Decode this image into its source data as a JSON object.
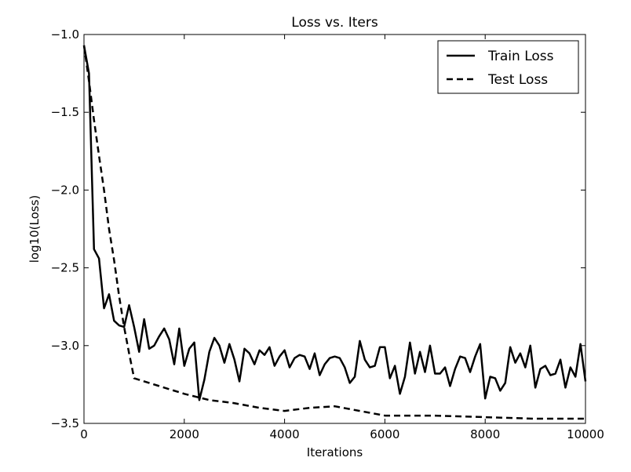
{
  "chart_data": {
    "type": "line",
    "title": "Loss vs. Iters",
    "xlabel": "Iterations",
    "ylabel": "log10(Loss)",
    "xlim": [
      0,
      10000
    ],
    "ylim": [
      -3.5,
      -1.0
    ],
    "xticks": [
      0,
      2000,
      4000,
      6000,
      8000,
      10000
    ],
    "xtick_labels": [
      "0",
      "2000",
      "4000",
      "6000",
      "8000",
      "10000"
    ],
    "yticks": [
      -1.0,
      -1.5,
      -2.0,
      -2.5,
      -3.0,
      -3.5
    ],
    "ytick_labels": [
      "−1.0",
      "−1.5",
      "−2.0",
      "−2.5",
      "−3.0",
      "−3.5"
    ],
    "grid": false,
    "legend_position": "top-right",
    "series": [
      {
        "name": "Train Loss",
        "style": "solid",
        "color": "#000000",
        "x": [
          0,
          100,
          200,
          300,
          400,
          500,
          600,
          700,
          800,
          900,
          1000,
          1100,
          1200,
          1300,
          1400,
          1500,
          1600,
          1700,
          1800,
          1900,
          2000,
          2100,
          2200,
          2300,
          2400,
          2500,
          2600,
          2700,
          2800,
          2900,
          3000,
          3100,
          3200,
          3300,
          3400,
          3500,
          3600,
          3700,
          3800,
          3900,
          4000,
          4100,
          4200,
          4300,
          4400,
          4500,
          4600,
          4700,
          4800,
          4900,
          5000,
          5100,
          5200,
          5300,
          5400,
          5500,
          5600,
          5700,
          5800,
          5900,
          6000,
          6100,
          6200,
          6300,
          6400,
          6500,
          6600,
          6700,
          6800,
          6900,
          7000,
          7100,
          7200,
          7300,
          7400,
          7500,
          7600,
          7700,
          7800,
          7900,
          8000,
          8100,
          8200,
          8300,
          8400,
          8500,
          8600,
          8700,
          8800,
          8900,
          9000,
          9100,
          9200,
          9300,
          9400,
          9500,
          9600,
          9700,
          9800,
          9900,
          10000
        ],
        "y": [
          -1.07,
          -1.25,
          -2.38,
          -2.44,
          -2.76,
          -2.67,
          -2.84,
          -2.87,
          -2.88,
          -2.74,
          -2.88,
          -3.04,
          -2.83,
          -3.02,
          -3.0,
          -2.94,
          -2.89,
          -2.96,
          -3.12,
          -2.89,
          -3.13,
          -3.02,
          -2.98,
          -3.35,
          -3.22,
          -3.04,
          -2.95,
          -3.0,
          -3.11,
          -2.99,
          -3.09,
          -3.23,
          -3.02,
          -3.05,
          -3.12,
          -3.03,
          -3.06,
          -3.01,
          -3.13,
          -3.07,
          -3.03,
          -3.14,
          -3.08,
          -3.06,
          -3.07,
          -3.15,
          -3.05,
          -3.19,
          -3.12,
          -3.08,
          -3.07,
          -3.08,
          -3.14,
          -3.24,
          -3.2,
          -2.97,
          -3.09,
          -3.14,
          -3.13,
          -3.01,
          -3.01,
          -3.21,
          -3.13,
          -3.31,
          -3.2,
          -2.98,
          -3.18,
          -3.04,
          -3.17,
          -3.0,
          -3.18,
          -3.18,
          -3.14,
          -3.26,
          -3.15,
          -3.07,
          -3.08,
          -3.17,
          -3.07,
          -2.99,
          -3.34,
          -3.2,
          -3.21,
          -3.29,
          -3.24,
          -3.01,
          -3.11,
          -3.05,
          -3.14,
          -3.0,
          -3.27,
          -3.15,
          -3.13,
          -3.19,
          -3.18,
          -3.09,
          -3.27,
          -3.14,
          -3.2,
          -2.99,
          -3.23
        ]
      },
      {
        "name": "Test Loss",
        "style": "dashed",
        "color": "#000000",
        "x": [
          0,
          100,
          200,
          300,
          400,
          500,
          600,
          700,
          800,
          900,
          1000,
          1500,
          2000,
          2500,
          3000,
          3500,
          4000,
          4500,
          5000,
          5500,
          6000,
          7000,
          8000,
          9000,
          10000
        ],
        "y": [
          -1.07,
          -1.3,
          -1.55,
          -1.78,
          -2.0,
          -2.25,
          -2.45,
          -2.68,
          -2.88,
          -3.05,
          -3.21,
          -3.26,
          -3.31,
          -3.35,
          -3.37,
          -3.4,
          -3.42,
          -3.4,
          -3.39,
          -3.42,
          -3.45,
          -3.45,
          -3.46,
          -3.47,
          -3.47
        ]
      }
    ]
  }
}
